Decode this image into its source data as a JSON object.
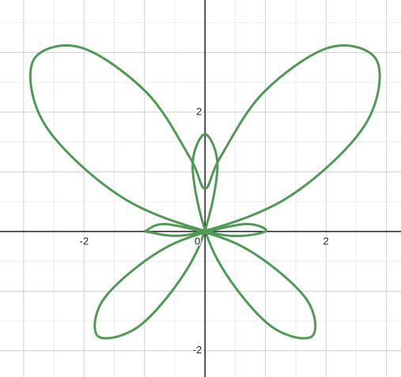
{
  "chart_data": {
    "type": "line",
    "x": [
      -1,
      -0.195,
      1.355,
      2.625,
      2.848,
      2.062,
      0.964,
      0.244,
      0,
      -0.244,
      -0.964,
      -2.062,
      -2.848,
      -2.625,
      -1.355,
      0.195,
      1,
      0.58,
      -0.63,
      -1.653,
      -1.763,
      -1.028,
      -0.152,
      0.203,
      0,
      -0.203,
      0.152,
      1.028,
      1.763,
      1.653,
      0.63,
      -0.58,
      -1
    ],
    "values": [
      0,
      -0.039,
      0.561,
      1.754,
      2.848,
      3.086,
      2.327,
      1.228,
      0.718,
      1.228,
      2.327,
      3.086,
      2.848,
      1.754,
      0.561,
      -0.039,
      0,
      0.115,
      -0.261,
      -1.104,
      -1.763,
      -1.538,
      -0.367,
      1.019,
      1.632,
      1.019,
      -0.367,
      -1.538,
      -1.763,
      -1.104,
      -0.261,
      0.115,
      0
    ],
    "color": "#4f9a55",
    "xlim": [
      -3.39,
      3.24
    ],
    "ylim": [
      -2.44,
      3.88
    ],
    "xticks": [
      -2,
      0,
      2
    ],
    "yticks": [
      -2,
      2
    ],
    "xgrid": [
      -3,
      -2.5,
      -2,
      -1.5,
      -1,
      -0.5,
      0.5,
      1,
      1.5,
      2,
      2.5,
      3
    ],
    "ygrid": [
      -2,
      -1.5,
      -1,
      -0.5,
      0.5,
      1,
      1.5,
      2,
      2.5,
      3,
      3.5
    ],
    "grid": true
  }
}
